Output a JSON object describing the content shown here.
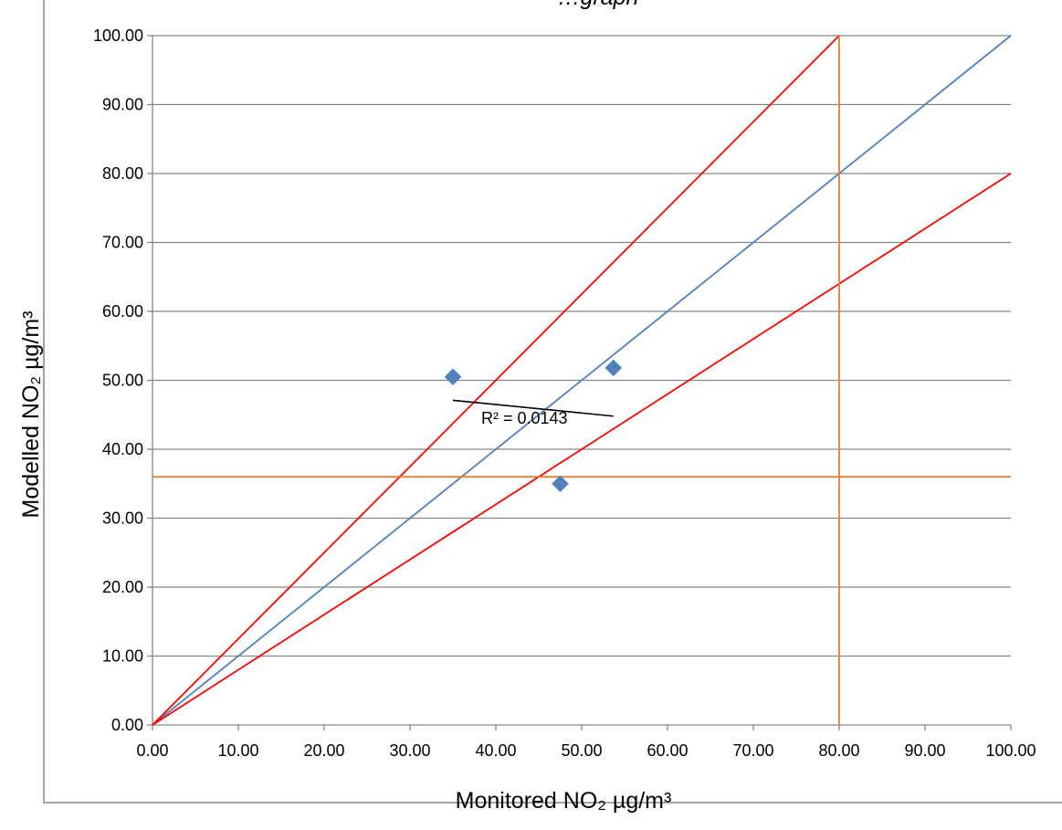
{
  "chart_data": {
    "type": "scatter",
    "title": "…graph",
    "xlabel": "Monitored NO₂ µg/m³",
    "ylabel": "Modelled NO₂ µg/m³",
    "xlim": [
      0,
      100
    ],
    "ylim": [
      0,
      100
    ],
    "x_ticks": [
      "0.00",
      "10.00",
      "20.00",
      "30.00",
      "40.00",
      "50.00",
      "60.00",
      "70.00",
      "80.00",
      "90.00",
      "100.00"
    ],
    "y_ticks": [
      "0.00",
      "10.00",
      "20.00",
      "30.00",
      "40.00",
      "50.00",
      "60.00",
      "70.00",
      "80.00",
      "90.00",
      "100.00"
    ],
    "grid": "horizontal",
    "series": [
      {
        "marker": "diamond",
        "color": "#4F81BD",
        "points": [
          {
            "x": 35.0,
            "y": 50.5
          },
          {
            "x": 47.5,
            "y": 35.0
          },
          {
            "x": 53.7,
            "y": 51.8
          }
        ]
      }
    ],
    "reference_lines": [
      {
        "color": "#4F81BD",
        "points": [
          [
            0,
            0
          ],
          [
            100,
            100
          ]
        ]
      },
      {
        "color": "#FF0000",
        "points": [
          [
            0,
            0
          ],
          [
            80,
            100
          ]
        ]
      },
      {
        "color": "#FF0000",
        "points": [
          [
            0,
            0
          ],
          [
            100,
            80
          ]
        ]
      },
      {
        "color": "#ED7D31",
        "points": [
          [
            0,
            36
          ],
          [
            100,
            36
          ]
        ]
      },
      {
        "color": "#ED7D31",
        "points": [
          [
            80,
            100
          ],
          [
            80,
            0
          ]
        ]
      }
    ],
    "trendline": {
      "color": "#000000",
      "points": [
        [
          35.0,
          47.1
        ],
        [
          53.7,
          44.8
        ]
      ],
      "r2_label": "R² = 0.0143"
    },
    "colors": {
      "grid": "#868686",
      "frame": "#868686",
      "axis": "#868686"
    }
  }
}
